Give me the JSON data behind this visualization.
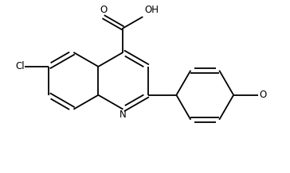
{
  "bg_color": "#ffffff",
  "line_color": "#000000",
  "lw": 1.3,
  "fs": 8.5,
  "figsize": [
    3.64,
    2.18
  ],
  "dpi": 100,
  "xlim": [
    0,
    10
  ],
  "ylim": [
    0,
    6
  ]
}
